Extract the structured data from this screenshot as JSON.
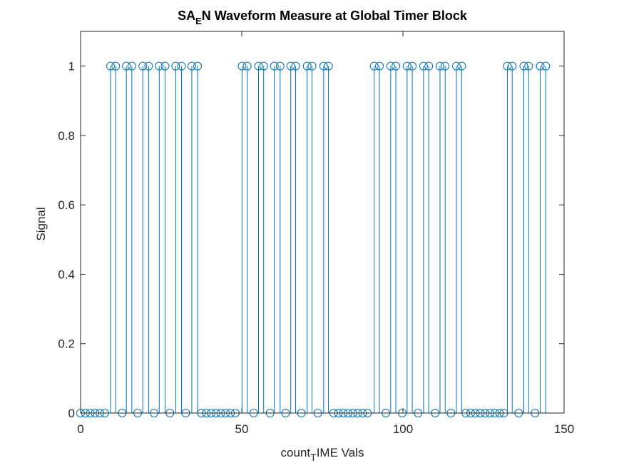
{
  "chart_data": {
    "type": "stem",
    "title_parts": [
      "SA",
      "E",
      "N Waveform Measure at Global Timer Block"
    ],
    "xlabel_parts": [
      "count",
      "T",
      "IME Vals"
    ],
    "ylabel": "Signal",
    "color": "#0072BD",
    "xlim": [
      0,
      150
    ],
    "xticks": [
      0,
      50,
      100,
      150
    ],
    "ylim": [
      0,
      1.1
    ],
    "yticks": [
      0,
      0.2,
      0.4,
      0.6,
      0.8,
      1
    ],
    "x": [
      0,
      1.5,
      3,
      4.5,
      6,
      7.5,
      9.3,
      10.9,
      12.9,
      14.2,
      15.9,
      17.7,
      19.3,
      21.1,
      22.8,
      24.4,
      26.2,
      27.7,
      29.5,
      31.3,
      32.6,
      34.5,
      36.3,
      37.5,
      39,
      40.5,
      42,
      43.5,
      45,
      46.5,
      48,
      50.1,
      51.7,
      53.7,
      55.2,
      56.8,
      58.8,
      60.1,
      61.9,
      63.6,
      65.2,
      66.7,
      68.5,
      70.3,
      71.8,
      73.6,
      75.4,
      76.9,
      78.5,
      80,
      81.5,
      83,
      84.5,
      86,
      87.5,
      89,
      91.1,
      92.7,
      94.7,
      96.2,
      97.8,
      99.8,
      101.3,
      102.9,
      104.7,
      106.4,
      108,
      110,
      111.5,
      113.1,
      114.9,
      116.6,
      118.2,
      119.5,
      121,
      122.5,
      124,
      125.5,
      127,
      128.5,
      130,
      131.3,
      132.4,
      133.9,
      135.9,
      137.5,
      139,
      141,
      142.6,
      144.3
    ],
    "values": [
      0,
      0,
      0,
      0,
      0,
      0,
      1,
      1,
      0,
      1,
      1,
      0,
      1,
      1,
      0,
      1,
      1,
      0,
      1,
      1,
      0,
      1,
      1,
      0,
      0,
      0,
      0,
      0,
      0,
      0,
      0,
      1,
      1,
      0,
      1,
      1,
      0,
      1,
      1,
      0,
      1,
      1,
      0,
      1,
      1,
      0,
      1,
      1,
      0,
      0,
      0,
      0,
      0,
      0,
      0,
      0,
      1,
      1,
      0,
      1,
      1,
      0,
      1,
      1,
      0,
      1,
      1,
      0,
      1,
      1,
      0,
      1,
      1,
      0,
      0,
      0,
      0,
      0,
      0,
      0,
      0,
      0,
      1,
      1,
      0,
      1,
      1,
      0,
      1,
      1
    ]
  }
}
